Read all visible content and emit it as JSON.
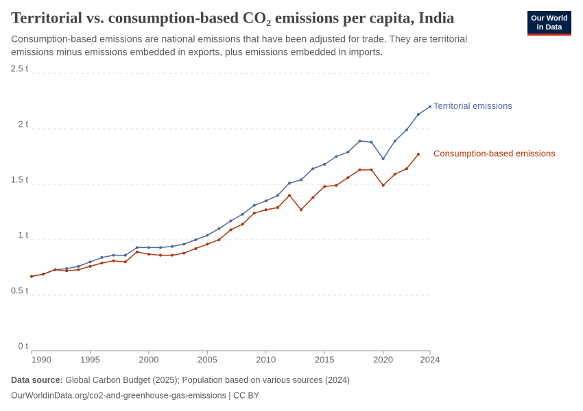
{
  "chart_data": {
    "type": "line",
    "title": "Territorial vs. consumption-based CO₂ emissions per capita, India",
    "subtitle_lines": [
      "Consumption-based emissions are national emissions that have been adjusted for trade. They are territorial",
      "emissions minus emissions embedded in exports, plus emissions embedded in imports."
    ],
    "logo": [
      "Our World",
      "in Data"
    ],
    "source_label": "Data source:",
    "source_text": "Global Carbon Budget (2025); Population based on various sources (2024)",
    "footer": "OurWorldinData.org/co2-and-greenhouse-gas-emissions | CC BY",
    "x": [
      1990,
      1991,
      1992,
      1993,
      1994,
      1995,
      1996,
      1997,
      1998,
      1999,
      2000,
      2001,
      2002,
      2003,
      2004,
      2005,
      2006,
      2007,
      2008,
      2009,
      2010,
      2011,
      2012,
      2013,
      2014,
      2015,
      2016,
      2017,
      2018,
      2019,
      2020,
      2021,
      2022,
      2023,
      2024
    ],
    "series": [
      {
        "name": "Territorial emissions",
        "color": "#4c6a9c",
        "values": [
          0.67,
          0.69,
          0.73,
          0.74,
          0.76,
          0.8,
          0.84,
          0.86,
          0.86,
          0.93,
          0.93,
          0.93,
          0.94,
          0.96,
          1.0,
          1.04,
          1.1,
          1.17,
          1.23,
          1.31,
          1.35,
          1.4,
          1.51,
          1.54,
          1.64,
          1.68,
          1.75,
          1.79,
          1.89,
          1.88,
          1.73,
          1.89,
          1.99,
          2.13,
          2.2
        ]
      },
      {
        "name": "Consumption-based emissions",
        "color": "#b13507",
        "values": [
          0.67,
          0.69,
          0.73,
          0.72,
          0.73,
          0.76,
          0.79,
          0.81,
          0.8,
          0.89,
          0.87,
          0.86,
          0.86,
          0.88,
          0.92,
          0.96,
          1.0,
          1.09,
          1.14,
          1.24,
          1.27,
          1.29,
          1.4,
          1.27,
          1.38,
          1.48,
          1.49,
          1.56,
          1.63,
          1.63,
          1.49,
          1.59,
          1.64,
          1.77,
          null
        ]
      }
    ],
    "xlim": [
      1990,
      2024
    ],
    "xticks": [
      1990,
      1995,
      2000,
      2005,
      2010,
      2015,
      2020,
      2024
    ],
    "ylim": [
      0,
      2.5
    ],
    "yticks": [
      {
        "value": 0,
        "label": "0 t"
      },
      {
        "value": 0.5,
        "label": "0.5 t"
      },
      {
        "value": 1,
        "label": "1 t"
      },
      {
        "value": 1.5,
        "label": "1.5 t"
      },
      {
        "value": 2,
        "label": "2 t"
      },
      {
        "value": 2.5,
        "label": "2.5 t"
      }
    ],
    "grid": true
  }
}
